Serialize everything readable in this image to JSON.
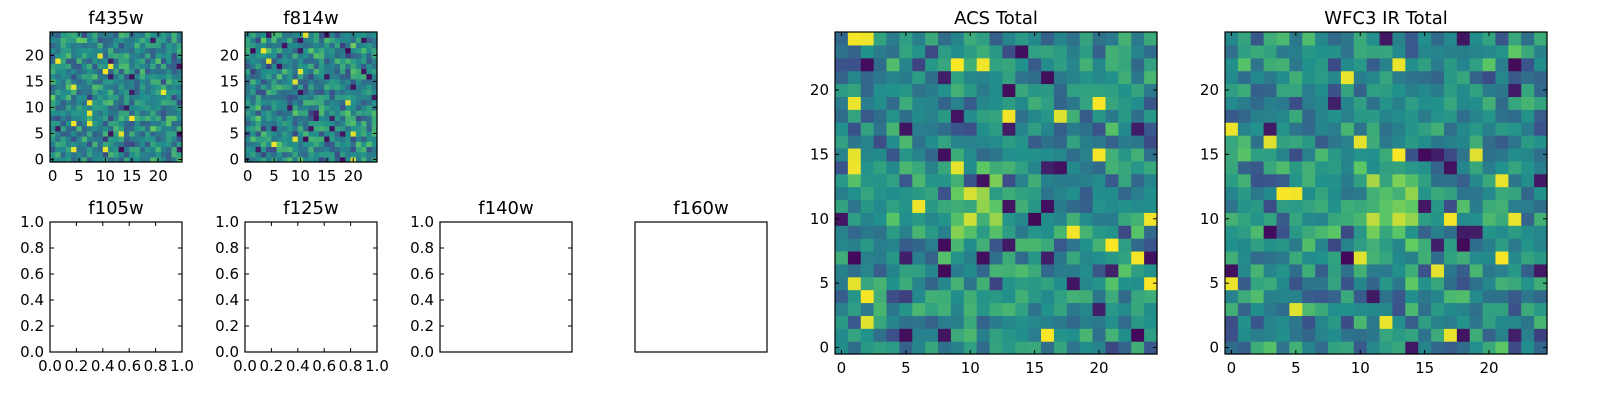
{
  "figure": {
    "colormap": [
      "#440154",
      "#3b528b",
      "#21918c",
      "#5ec962",
      "#fde725"
    ],
    "background": "#ffffff"
  },
  "chart_data": [
    {
      "type": "heatmap",
      "title": "f435w",
      "size": 25,
      "xticks": [
        "0",
        "5",
        "10",
        "15",
        "20"
      ],
      "yticks": [
        "0",
        "5",
        "10",
        "15",
        "20"
      ],
      "xlim": [
        -0.5,
        24.5
      ],
      "ylim": [
        -0.5,
        24.5
      ],
      "grid": false,
      "seed": 11,
      "style": "noise"
    },
    {
      "type": "heatmap",
      "title": "f814w",
      "size": 25,
      "xticks": [
        "0",
        "5",
        "10",
        "15",
        "20"
      ],
      "yticks": [
        "0",
        "5",
        "10",
        "15",
        "20"
      ],
      "xlim": [
        -0.5,
        24.5
      ],
      "ylim": [
        -0.5,
        24.5
      ],
      "grid": false,
      "seed": 23,
      "style": "noise"
    },
    {
      "type": "line",
      "title": "f105w",
      "xticks": [
        "0.0",
        "0.2",
        "0.4",
        "0.6",
        "0.8",
        "1.0"
      ],
      "yticks": [
        "0.0",
        "0.2",
        "0.4",
        "0.6",
        "0.8",
        "1.0"
      ],
      "xlim": [
        0,
        1
      ],
      "ylim": [
        0,
        1
      ],
      "grid": false,
      "empty": true
    },
    {
      "type": "line",
      "title": "f125w",
      "xticks": [
        "0.0",
        "0.2",
        "0.4",
        "0.6",
        "0.8",
        "1.0"
      ],
      "yticks": [
        "0.0",
        "0.2",
        "0.4",
        "0.6",
        "0.8",
        "1.0"
      ],
      "xlim": [
        0,
        1
      ],
      "ylim": [
        0,
        1
      ],
      "grid": false,
      "empty": true
    },
    {
      "type": "line",
      "title": "f140w",
      "xticks": [],
      "yticks": [
        "0.0",
        "0.2",
        "0.4",
        "0.6",
        "0.8",
        "1.0"
      ],
      "xlim": [
        0,
        1
      ],
      "ylim": [
        0,
        1
      ],
      "grid": false,
      "empty": true
    },
    {
      "type": "line",
      "title": "f160w",
      "xticks": [],
      "yticks": [],
      "xlim": [
        0,
        1
      ],
      "ylim": [
        0,
        1
      ],
      "grid": false,
      "empty": true
    },
    {
      "type": "heatmap",
      "title": "ACS Total",
      "size": 25,
      "xticks": [
        "0",
        "5",
        "10",
        "15",
        "20"
      ],
      "yticks": [
        "0",
        "5",
        "10",
        "15",
        "20"
      ],
      "xlim": [
        -0.5,
        24.5
      ],
      "ylim": [
        -0.5,
        24.5
      ],
      "grid": false,
      "seed": 37,
      "style": "blob",
      "blob_center": [
        11,
        11
      ]
    },
    {
      "type": "heatmap",
      "title": "WFC3 IR Total",
      "size": 25,
      "xticks": [
        "0",
        "5",
        "10",
        "15",
        "20"
      ],
      "yticks": [
        "0",
        "5",
        "10",
        "15",
        "20"
      ],
      "xlim": [
        -0.5,
        24.5
      ],
      "ylim": [
        -0.5,
        24.5
      ],
      "grid": false,
      "seed": 53,
      "style": "blob",
      "blob_center": [
        12,
        11
      ]
    }
  ]
}
